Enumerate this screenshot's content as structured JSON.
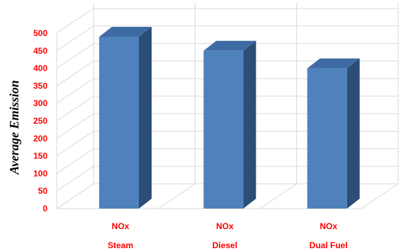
{
  "chart_data": {
    "type": "bar",
    "style": "3d-column",
    "title": "",
    "xlabel": "",
    "ylabel": "Average Emission",
    "categories": [
      "Steam",
      "Diesel",
      "Dual Fuel"
    ],
    "series_label": "NOx",
    "values": [
      490,
      450,
      400
    ],
    "ylim": [
      0,
      500
    ],
    "yticks": [
      0,
      50,
      100,
      150,
      200,
      250,
      300,
      350,
      400,
      450,
      500
    ],
    "grid": true,
    "legend": "none",
    "colors": {
      "bar_front": "#4f81bd",
      "bar_side": "#2c4d75",
      "bar_top": "#3e6ba3",
      "label_red": "#ff0000",
      "grid": "#d9d9d9",
      "ylabel": "#000000"
    }
  }
}
